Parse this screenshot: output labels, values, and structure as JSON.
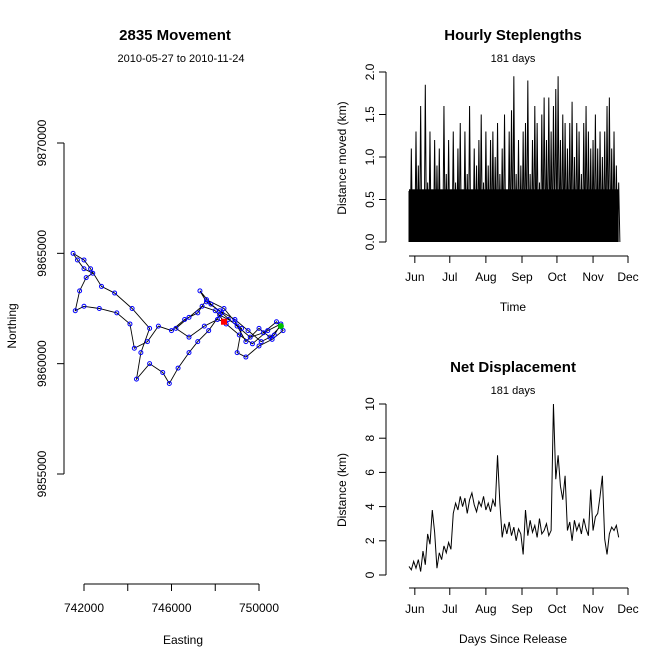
{
  "chart_data": [
    {
      "type": "scatter",
      "title": "2835 Movement",
      "subtitle": "2010-05-27 to 2010-11-24",
      "xlabel": "Easting",
      "ylabel": "Northing",
      "xlim": [
        741000,
        752000
      ],
      "ylim": [
        9850000,
        9870000
      ],
      "x_ticks": [
        742000,
        744000,
        746000,
        748000,
        750000
      ],
      "x_tick_labels": [
        "742000",
        "",
        "746000",
        "",
        "750000"
      ],
      "y_ticks": [
        9855000,
        9860000,
        9865000,
        9870000
      ],
      "y_tick_labels": [
        "9855000",
        "9860000",
        "9865000",
        "9870000"
      ],
      "colors": {
        "track_line": "#000000",
        "fixes": "#0000ff",
        "start": "#00c000",
        "end": "#ff0000"
      },
      "start_point": [
        751000,
        9861700
      ],
      "end_point": [
        748400,
        9861900
      ],
      "track": [
        [
          751000,
          9861700
        ],
        [
          750500,
          9861200
        ],
        [
          750000,
          9861600
        ],
        [
          749400,
          9861000
        ],
        [
          748900,
          9861900
        ],
        [
          748400,
          9862500
        ],
        [
          747600,
          9862900
        ],
        [
          747200,
          9862300
        ],
        [
          746600,
          9862000
        ],
        [
          746000,
          9861500
        ],
        [
          745400,
          9861700
        ],
        [
          744900,
          9861000
        ],
        [
          744300,
          9860700
        ],
        [
          744100,
          9861800
        ],
        [
          743500,
          9862300
        ],
        [
          742700,
          9862500
        ],
        [
          742000,
          9862600
        ],
        [
          741600,
          9862400
        ],
        [
          741800,
          9863300
        ],
        [
          742100,
          9863900
        ],
        [
          742400,
          9864100
        ],
        [
          742000,
          9864300
        ],
        [
          741700,
          9864700
        ],
        [
          741500,
          9865000
        ],
        [
          742000,
          9864700
        ],
        [
          742300,
          9864300
        ],
        [
          742800,
          9863500
        ],
        [
          743400,
          9863200
        ],
        [
          744200,
          9862500
        ],
        [
          745000,
          9861600
        ],
        [
          744600,
          9860500
        ],
        [
          744400,
          9859300
        ],
        [
          745000,
          9860000
        ],
        [
          745600,
          9859600
        ],
        [
          745900,
          9859100
        ],
        [
          746300,
          9859800
        ],
        [
          746800,
          9860500
        ],
        [
          747200,
          9861000
        ],
        [
          747700,
          9861500
        ],
        [
          748200,
          9862200
        ],
        [
          748600,
          9862000
        ],
        [
          749200,
          9861600
        ],
        [
          749000,
          9860500
        ],
        [
          749400,
          9860300
        ],
        [
          750000,
          9860800
        ],
        [
          750600,
          9861100
        ],
        [
          751100,
          9861500
        ],
        [
          750800,
          9861900
        ],
        [
          750200,
          9861400
        ],
        [
          749600,
          9861200
        ],
        [
          749000,
          9861700
        ],
        [
          748300,
          9862300
        ],
        [
          747800,
          9862700
        ],
        [
          747300,
          9863300
        ],
        [
          747600,
          9862800
        ],
        [
          748200,
          9862400
        ],
        [
          748900,
          9862000
        ],
        [
          749500,
          9861500
        ],
        [
          750100,
          9861000
        ],
        [
          750700,
          9861300
        ],
        [
          751000,
          9861800
        ],
        [
          750400,
          9861500
        ],
        [
          749700,
          9860900
        ],
        [
          749100,
          9861300
        ],
        [
          748500,
          9861800
        ],
        [
          748000,
          9862400
        ],
        [
          747400,
          9862600
        ],
        [
          746800,
          9862100
        ],
        [
          746200,
          9861600
        ],
        [
          746800,
          9861200
        ],
        [
          747500,
          9861700
        ],
        [
          748100,
          9862000
        ],
        [
          748400,
          9861900
        ]
      ]
    },
    {
      "type": "line",
      "title": "Hourly Steplengths",
      "subtitle": "181 days",
      "xlabel": "Time",
      "ylabel": "Distance moved (km)",
      "xlim": [
        0,
        188
      ],
      "ylim": [
        0,
        2.0
      ],
      "y_ticks": [
        0,
        0.5,
        1.0,
        1.5,
        2.0
      ],
      "y_tick_labels": [
        "0.0",
        "0.5",
        "1.0",
        "1.5",
        "2.0"
      ],
      "x_tick_days": [
        5,
        35,
        66,
        97,
        127,
        158,
        188
      ],
      "x_tick_labels": [
        "Jun",
        "Jul",
        "Aug",
        "Sep",
        "Oct",
        "Nov",
        "Dec"
      ],
      "x_unit": "days since 2010-05-27",
      "series": [
        {
          "values": [
            [
              0,
              0.6
            ],
            [
              2,
              1.1
            ],
            [
              4,
              0.3
            ],
            [
              6,
              1.3
            ],
            [
              8,
              0.9
            ],
            [
              10,
              1.6
            ],
            [
              12,
              0.4
            ],
            [
              14,
              1.85
            ],
            [
              16,
              0.7
            ],
            [
              18,
              1.3
            ],
            [
              20,
              0.5
            ],
            [
              22,
              1.2
            ],
            [
              24,
              0.9
            ],
            [
              26,
              1.1
            ],
            [
              28,
              0.4
            ],
            [
              30,
              1.6
            ],
            [
              32,
              0.8
            ],
            [
              34,
              1.2
            ],
            [
              36,
              0.5
            ],
            [
              38,
              1.3
            ],
            [
              40,
              0.7
            ],
            [
              42,
              1.1
            ],
            [
              44,
              1.4
            ],
            [
              46,
              0.6
            ],
            [
              48,
              1.3
            ],
            [
              50,
              0.8
            ],
            [
              52,
              1.6
            ],
            [
              54,
              0.5
            ],
            [
              56,
              1.1
            ],
            [
              58,
              0.9
            ],
            [
              60,
              1.2
            ],
            [
              62,
              1.5
            ],
            [
              64,
              0.7
            ],
            [
              66,
              1.3
            ],
            [
              68,
              0.9
            ],
            [
              70,
              1.2
            ],
            [
              72,
              1.3
            ],
            [
              74,
              1.0
            ],
            [
              76,
              1.4
            ],
            [
              78,
              0.8
            ],
            [
              80,
              1.1
            ],
            [
              82,
              1.5
            ],
            [
              84,
              0.6
            ],
            [
              86,
              1.3
            ],
            [
              88,
              1.55
            ],
            [
              90,
              1.95
            ],
            [
              92,
              0.8
            ],
            [
              94,
              1.2
            ],
            [
              96,
              0.9
            ],
            [
              98,
              1.3
            ],
            [
              100,
              1.4
            ],
            [
              102,
              1.9
            ],
            [
              104,
              0.8
            ],
            [
              106,
              1.2
            ],
            [
              108,
              1.6
            ],
            [
              110,
              1.4
            ],
            [
              112,
              0.7
            ],
            [
              114,
              1.5
            ],
            [
              116,
              1.7
            ],
            [
              118,
              1.2
            ],
            [
              120,
              1.7
            ],
            [
              122,
              1.3
            ],
            [
              124,
              1.6
            ],
            [
              126,
              1.8
            ],
            [
              128,
              1.95
            ],
            [
              130,
              1.2
            ],
            [
              132,
              1.5
            ],
            [
              134,
              1.4
            ],
            [
              136,
              1.1
            ],
            [
              138,
              1.4
            ],
            [
              140,
              1.65
            ],
            [
              142,
              1.0
            ],
            [
              144,
              1.4
            ],
            [
              146,
              1.3
            ],
            [
              148,
              0.8
            ],
            [
              150,
              1.4
            ],
            [
              152,
              1.6
            ],
            [
              154,
              1.3
            ],
            [
              156,
              1.1
            ],
            [
              158,
              1.2
            ],
            [
              160,
              1.5
            ],
            [
              162,
              1.1
            ],
            [
              164,
              1.3
            ],
            [
              166,
              1.0
            ],
            [
              168,
              1.3
            ],
            [
              170,
              1.6
            ],
            [
              172,
              1.7
            ],
            [
              174,
              1.1
            ],
            [
              176,
              1.3
            ],
            [
              178,
              0.9
            ],
            [
              180,
              0.7
            ]
          ]
        }
      ]
    },
    {
      "type": "line",
      "title": "Net Displacement",
      "subtitle": "181 days",
      "xlabel": "Days Since Release",
      "ylabel": "Distance (km)",
      "xlim": [
        0,
        188
      ],
      "ylim": [
        0,
        10
      ],
      "y_ticks": [
        0,
        2,
        4,
        6,
        8,
        10
      ],
      "y_tick_labels": [
        "0",
        "2",
        "4",
        "6",
        "8",
        "10"
      ],
      "x_tick_days": [
        5,
        35,
        66,
        97,
        127,
        158,
        188
      ],
      "x_tick_labels": [
        "Jun",
        "Jul",
        "Aug",
        "Sep",
        "Oct",
        "Nov",
        "Dec"
      ],
      "x_unit": "days since 2010-05-27",
      "series": [
        {
          "values": [
            [
              0,
              0.5
            ],
            [
              2,
              0.3
            ],
            [
              4,
              0.8
            ],
            [
              6,
              0.4
            ],
            [
              8,
              0.9
            ],
            [
              10,
              0.2
            ],
            [
              12,
              1.4
            ],
            [
              14,
              0.6
            ],
            [
              16,
              2.4
            ],
            [
              18,
              1.8
            ],
            [
              20,
              3.8
            ],
            [
              22,
              2.5
            ],
            [
              24,
              0.4
            ],
            [
              26,
              1.3
            ],
            [
              28,
              0.9
            ],
            [
              30,
              1.7
            ],
            [
              32,
              1.3
            ],
            [
              34,
              1.9
            ],
            [
              36,
              1.5
            ],
            [
              38,
              3.6
            ],
            [
              40,
              4.2
            ],
            [
              42,
              3.8
            ],
            [
              44,
              4.6
            ],
            [
              46,
              4.0
            ],
            [
              48,
              4.5
            ],
            [
              50,
              3.6
            ],
            [
              52,
              4.4
            ],
            [
              54,
              4.8
            ],
            [
              56,
              4.1
            ],
            [
              58,
              3.7
            ],
            [
              60,
              4.3
            ],
            [
              62,
              4.0
            ],
            [
              64,
              4.6
            ],
            [
              66,
              3.8
            ],
            [
              68,
              4.2
            ],
            [
              70,
              3.7
            ],
            [
              72,
              4.4
            ],
            [
              74,
              4.0
            ],
            [
              76,
              7.0
            ],
            [
              78,
              4.2
            ],
            [
              80,
              2.2
            ],
            [
              82,
              3.0
            ],
            [
              84,
              2.4
            ],
            [
              86,
              3.1
            ],
            [
              88,
              2.3
            ],
            [
              90,
              2.8
            ],
            [
              92,
              2.0
            ],
            [
              94,
              2.7
            ],
            [
              96,
              2.4
            ],
            [
              98,
              1.2
            ],
            [
              100,
              3.8
            ],
            [
              102,
              2.3
            ],
            [
              104,
              3.2
            ],
            [
              106,
              2.5
            ],
            [
              108,
              2.9
            ],
            [
              110,
              2.2
            ],
            [
              112,
              3.3
            ],
            [
              114,
              2.4
            ],
            [
              116,
              2.6
            ],
            [
              118,
              3.0
            ],
            [
              120,
              2.3
            ],
            [
              122,
              2.6
            ],
            [
              124,
              10.0
            ],
            [
              126,
              5.6
            ],
            [
              128,
              7.0
            ],
            [
              130,
              5.2
            ],
            [
              132,
              4.4
            ],
            [
              134,
              5.8
            ],
            [
              136,
              2.6
            ],
            [
              138,
              3.1
            ],
            [
              140,
              2.0
            ],
            [
              142,
              3.2
            ],
            [
              144,
              2.6
            ],
            [
              146,
              3.0
            ],
            [
              148,
              2.4
            ],
            [
              150,
              3.3
            ],
            [
              152,
              2.7
            ],
            [
              154,
              2.3
            ],
            [
              156,
              5.0
            ],
            [
              158,
              2.6
            ],
            [
              160,
              3.4
            ],
            [
              162,
              3.6
            ],
            [
              164,
              4.6
            ],
            [
              166,
              5.8
            ],
            [
              168,
              2.1
            ],
            [
              170,
              1.2
            ],
            [
              172,
              2.4
            ],
            [
              174,
              2.8
            ],
            [
              176,
              2.6
            ],
            [
              178,
              2.9
            ],
            [
              180,
              2.2
            ]
          ]
        }
      ]
    }
  ]
}
